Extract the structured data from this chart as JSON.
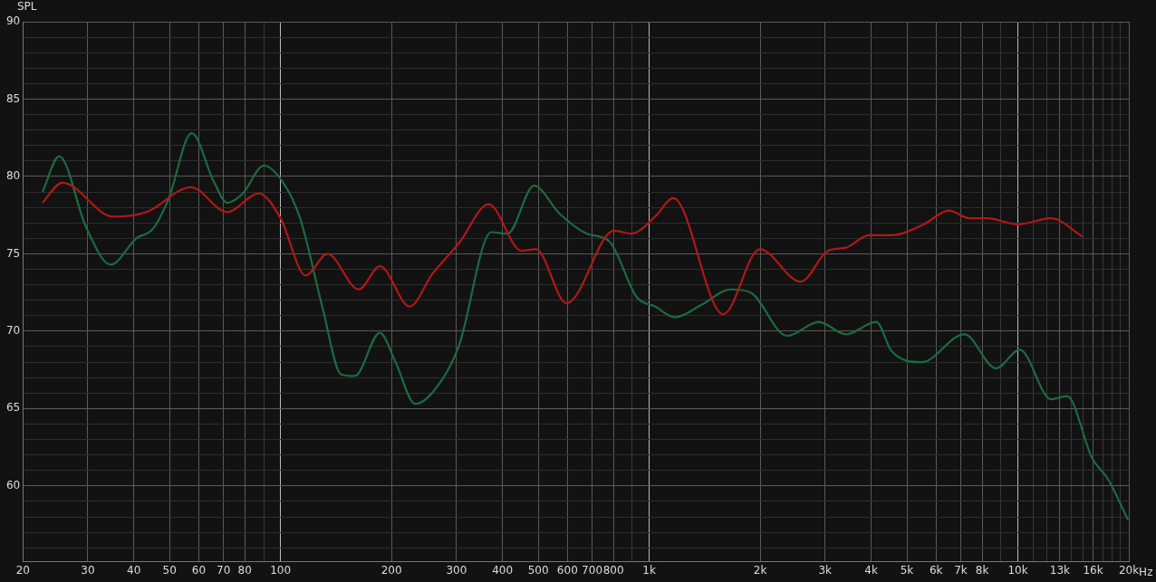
{
  "chart_data": {
    "type": "line",
    "ylabel": "SPL",
    "log": "x",
    "grid": true,
    "legend": false,
    "marker": "none",
    "line_style": "solid",
    "xlim": [
      20,
      20000
    ],
    "ylim": [
      55.1,
      90
    ],
    "xticks": [
      {
        "value": 20,
        "label": "20"
      },
      30,
      40,
      50,
      60,
      70,
      80,
      {
        "value": 90,
        "label": null
      },
      100,
      200,
      300,
      400,
      500,
      600,
      700,
      800,
      {
        "value": 900,
        "label": null
      },
      {
        "value": 1000,
        "label": "1k"
      },
      {
        "value": 2000,
        "label": "2k"
      },
      {
        "value": 3000,
        "label": "3k"
      },
      {
        "value": 4000,
        "label": "4k"
      },
      {
        "value": 5000,
        "label": "5k"
      },
      {
        "value": 6000,
        "label": "6k"
      },
      {
        "value": 7000,
        "label": "7k"
      },
      {
        "value": 8000,
        "label": "8k"
      },
      {
        "value": 9000,
        "label": null
      },
      {
        "value": 10000,
        "label": "10k"
      },
      {
        "value": 11000,
        "label": null
      },
      {
        "value": 12000,
        "label": null
      },
      {
        "value": 13000,
        "label": "13k"
      },
      {
        "value": 14000,
        "label": null
      },
      {
        "value": 15000,
        "label": null
      },
      {
        "value": 16000,
        "label": "16k"
      },
      {
        "value": 17000,
        "label": null
      },
      {
        "value": 18000,
        "label": null
      },
      {
        "value": 19000,
        "label": null
      },
      {
        "value": 20000,
        "label": "20k"
      }
    ],
    "xlabel": "Hz",
    "yticks": [
      {
        "value": 56,
        "label": null
      },
      {
        "value": 57,
        "label": null
      },
      {
        "value": 58,
        "label": null
      },
      {
        "value": 59,
        "label": null
      },
      60,
      {
        "value": 61,
        "label": null
      },
      {
        "value": 62,
        "label": null
      },
      {
        "value": 63,
        "label": null
      },
      {
        "value": 64,
        "label": null
      },
      65,
      {
        "value": 66,
        "label": null
      },
      {
        "value": 67,
        "label": null
      },
      {
        "value": 68,
        "label": null
      },
      {
        "value": 69,
        "label": null
      },
      70,
      {
        "value": 71,
        "label": null
      },
      {
        "value": 72,
        "label": null
      },
      {
        "value": 73,
        "label": null
      },
      {
        "value": 74,
        "label": null
      },
      75,
      {
        "value": 76,
        "label": null
      },
      {
        "value": 77,
        "label": null
      },
      {
        "value": 78,
        "label": null
      },
      {
        "value": 79,
        "label": null
      },
      80,
      {
        "value": 81,
        "label": null
      },
      {
        "value": 82,
        "label": null
      },
      {
        "value": 83,
        "label": null
      },
      {
        "value": 84,
        "label": null
      },
      85,
      {
        "value": 86,
        "label": null
      },
      {
        "value": 87,
        "label": null
      },
      {
        "value": 88,
        "label": null
      },
      {
        "value": 89,
        "label": null
      },
      90
    ],
    "series": [
      {
        "color": "#b01818",
        "x": [
          22.6,
          25.6,
          35.2,
          43.3,
          57.1,
          71.6,
          87.3,
          100,
          117,
          134,
          163,
          186,
          224,
          258,
          305,
          367,
          450,
          493,
          597,
          803,
          895,
          1037,
          1162,
          1588,
          1994,
          2576,
          3056,
          3420,
          3945,
          4550,
          5550,
          6500,
          7370,
          8260,
          10000,
          12300,
          15000
        ],
        "values": [
          78.3,
          79.6,
          77.4,
          77.7,
          79.3,
          77.7,
          78.9,
          77.3,
          73.6,
          75.0,
          72.7,
          74.2,
          71.6,
          73.7,
          75.7,
          78.2,
          75.2,
          75.3,
          71.8,
          76.5,
          76.3,
          77.4,
          78.6,
          71.1,
          75.3,
          73.2,
          75.2,
          75.4,
          76.2,
          76.2,
          76.9,
          77.8,
          77.3,
          77.3,
          76.9,
          77.3,
          76.1
        ]
      },
      {
        "color": "#1b6b40",
        "x": [
          22.6,
          25.1,
          29.7,
          34.6,
          40.6,
          45,
          49.6,
          57.4,
          65.8,
          71.6,
          79,
          90,
          101,
          113,
          130,
          146,
          159,
          186,
          205,
          232,
          273,
          305,
          373,
          413,
          487,
          571,
          678,
          780,
          925,
          1037,
          1175,
          1386,
          1664,
          1884,
          2366,
          2885,
          3420,
          4130,
          4550,
          5480,
          7160,
          8730,
          10120,
          12300,
          13600,
          15900,
          17600,
          19900
        ],
        "values": [
          79.0,
          81.3,
          76.7,
          74.3,
          76.0,
          76.6,
          78.5,
          82.8,
          79.7,
          78.3,
          78.9,
          80.7,
          79.7,
          77.3,
          71.5,
          67.2,
          67.1,
          69.9,
          68.0,
          65.3,
          66.8,
          69.1,
          76.4,
          76.3,
          79.4,
          77.6,
          76.3,
          75.8,
          72.2,
          71.6,
          70.9,
          71.7,
          72.7,
          72.5,
          69.7,
          70.6,
          69.8,
          70.6,
          68.7,
          68.0,
          69.8,
          67.6,
          68.8,
          65.6,
          65.8,
          61.8,
          60.4,
          57.8
        ]
      }
    ]
  }
}
